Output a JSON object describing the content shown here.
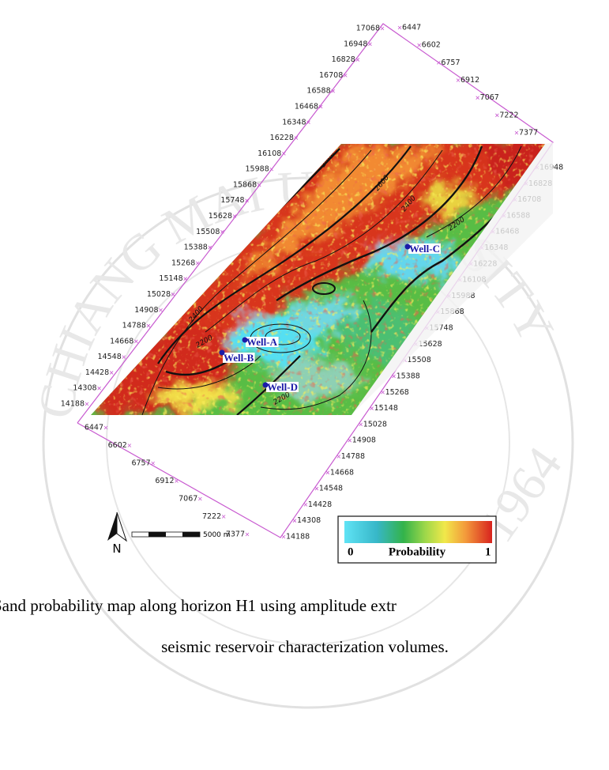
{
  "figure": {
    "inline_labels_left": [
      17068,
      16948,
      16828,
      16708,
      16588,
      16468,
      16348,
      16228,
      16108,
      15988,
      15868,
      15748,
      15628,
      15508,
      15388,
      15268,
      15148,
      15028,
      14908,
      14788,
      14668,
      14548,
      14428,
      14308,
      14188
    ],
    "xline_labels_top": [
      6447,
      6602,
      6757,
      6912,
      7067,
      7222,
      7377
    ],
    "inline_labels_right": [
      16948,
      16828,
      16708,
      16588,
      16468,
      16348,
      16228,
      16108,
      15988,
      15868,
      15748,
      15628,
      15508,
      15388,
      15268,
      15148,
      15028,
      14908,
      14788,
      14668,
      14548,
      14428,
      14308,
      14188
    ],
    "xline_labels_bottom": [
      6447,
      6602,
      6757,
      6912,
      7067,
      7222,
      7377
    ],
    "contour_labels": [
      "2800",
      "2600",
      "2400",
      "2200",
      "2400",
      "2200",
      "2200"
    ],
    "wells": [
      {
        "label": "Well-A"
      },
      {
        "label": "Well-B"
      },
      {
        "label": "Well-C"
      },
      {
        "label": "Well-D"
      }
    ],
    "legend": {
      "min": "0",
      "title": "Probability",
      "max": "1"
    },
    "north": "N",
    "scale_label": "5000 m"
  },
  "caption": [
    "Sand probability map along horizon H1 using amplitude extr",
    "seismic reservoir characterization volumes."
  ],
  "watermark": {
    "text": "CHIANG MAI UNIVERSITY",
    "year": "1964"
  }
}
